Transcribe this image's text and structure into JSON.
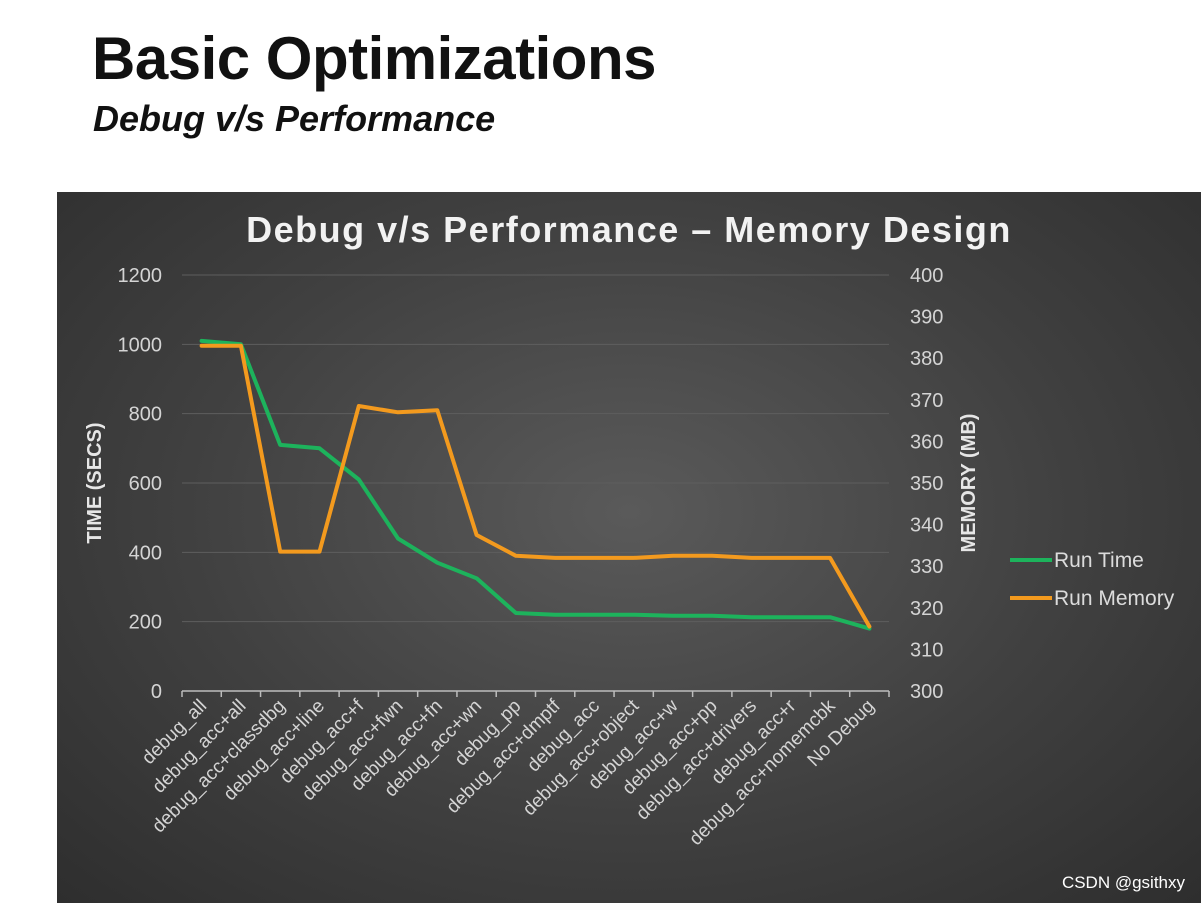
{
  "slide": {
    "title": "Basic Optimizations",
    "subtitle": "Debug v/s Performance"
  },
  "watermark": "CSDN @gsithxy",
  "chart_data": {
    "type": "line",
    "title": "Debug v/s Performance – Memory Design",
    "ylabel": "TIME (SECS)",
    "y2label": "MEMORY (MB)",
    "categories": [
      "debug_all",
      "debug_acc+all",
      "debug_acc+classdbg",
      "debug_acc+line",
      "debug_acc+f",
      "debug_acc+fwn",
      "debug_acc+fn",
      "debug_acc+wn",
      "debug_pp",
      "debug_acc+dmptf",
      "debug_acc",
      "debug_acc+object",
      "debug_acc+w",
      "debug_acc+pp",
      "debug_acc+drivers",
      "debug_acc+r",
      "debug_acc+nomemcbk",
      "No Debug"
    ],
    "ylim": [
      0,
      1200
    ],
    "yticks": [
      0,
      200,
      400,
      600,
      800,
      1000,
      1200
    ],
    "y2lim": [
      300,
      400
    ],
    "y2ticks": [
      300,
      310,
      320,
      330,
      340,
      350,
      360,
      370,
      380,
      390,
      400
    ],
    "grid": true,
    "legend_position": "right",
    "series": [
      {
        "name": "Run Time",
        "axis": "left",
        "color": "#1db35c",
        "values": [
          1010,
          1000,
          710,
          700,
          610,
          440,
          370,
          325,
          225,
          220,
          220,
          220,
          217,
          217,
          213,
          213,
          213,
          180
        ]
      },
      {
        "name": "Run Memory",
        "axis": "right",
        "color": "#f39a1e",
        "values": [
          383,
          383,
          333.5,
          333.5,
          368.5,
          367,
          367.5,
          337.5,
          332.5,
          332,
          332,
          332,
          332.5,
          332.5,
          332,
          332,
          332,
          315.5
        ]
      }
    ]
  }
}
